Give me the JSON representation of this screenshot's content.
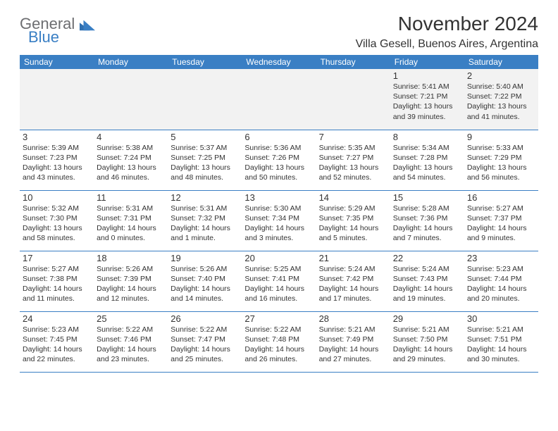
{
  "brand": {
    "text_top": "General",
    "text_bottom": "Blue",
    "colors": {
      "gray": "#6d6e71",
      "blue": "#3a7fc4"
    }
  },
  "header": {
    "title": "November 2024",
    "location": "Villa Gesell, Buenos Aires, Argentina"
  },
  "calendar": {
    "header_bg": "#3a7fc4",
    "header_text_color": "#ffffff",
    "row_divider_color": "#3a7fc4",
    "first_row_bg": "#f2f2f2",
    "day_headers": [
      "Sunday",
      "Monday",
      "Tuesday",
      "Wednesday",
      "Thursday",
      "Friday",
      "Saturday"
    ],
    "weeks": [
      [
        {
          "num": "",
          "sunrise": "",
          "sunset": "",
          "daylight": ""
        },
        {
          "num": "",
          "sunrise": "",
          "sunset": "",
          "daylight": ""
        },
        {
          "num": "",
          "sunrise": "",
          "sunset": "",
          "daylight": ""
        },
        {
          "num": "",
          "sunrise": "",
          "sunset": "",
          "daylight": ""
        },
        {
          "num": "",
          "sunrise": "",
          "sunset": "",
          "daylight": ""
        },
        {
          "num": "1",
          "sunrise": "Sunrise: 5:41 AM",
          "sunset": "Sunset: 7:21 PM",
          "daylight": "Daylight: 13 hours and 39 minutes."
        },
        {
          "num": "2",
          "sunrise": "Sunrise: 5:40 AM",
          "sunset": "Sunset: 7:22 PM",
          "daylight": "Daylight: 13 hours and 41 minutes."
        }
      ],
      [
        {
          "num": "3",
          "sunrise": "Sunrise: 5:39 AM",
          "sunset": "Sunset: 7:23 PM",
          "daylight": "Daylight: 13 hours and 43 minutes."
        },
        {
          "num": "4",
          "sunrise": "Sunrise: 5:38 AM",
          "sunset": "Sunset: 7:24 PM",
          "daylight": "Daylight: 13 hours and 46 minutes."
        },
        {
          "num": "5",
          "sunrise": "Sunrise: 5:37 AM",
          "sunset": "Sunset: 7:25 PM",
          "daylight": "Daylight: 13 hours and 48 minutes."
        },
        {
          "num": "6",
          "sunrise": "Sunrise: 5:36 AM",
          "sunset": "Sunset: 7:26 PM",
          "daylight": "Daylight: 13 hours and 50 minutes."
        },
        {
          "num": "7",
          "sunrise": "Sunrise: 5:35 AM",
          "sunset": "Sunset: 7:27 PM",
          "daylight": "Daylight: 13 hours and 52 minutes."
        },
        {
          "num": "8",
          "sunrise": "Sunrise: 5:34 AM",
          "sunset": "Sunset: 7:28 PM",
          "daylight": "Daylight: 13 hours and 54 minutes."
        },
        {
          "num": "9",
          "sunrise": "Sunrise: 5:33 AM",
          "sunset": "Sunset: 7:29 PM",
          "daylight": "Daylight: 13 hours and 56 minutes."
        }
      ],
      [
        {
          "num": "10",
          "sunrise": "Sunrise: 5:32 AM",
          "sunset": "Sunset: 7:30 PM",
          "daylight": "Daylight: 13 hours and 58 minutes."
        },
        {
          "num": "11",
          "sunrise": "Sunrise: 5:31 AM",
          "sunset": "Sunset: 7:31 PM",
          "daylight": "Daylight: 14 hours and 0 minutes."
        },
        {
          "num": "12",
          "sunrise": "Sunrise: 5:31 AM",
          "sunset": "Sunset: 7:32 PM",
          "daylight": "Daylight: 14 hours and 1 minute."
        },
        {
          "num": "13",
          "sunrise": "Sunrise: 5:30 AM",
          "sunset": "Sunset: 7:34 PM",
          "daylight": "Daylight: 14 hours and 3 minutes."
        },
        {
          "num": "14",
          "sunrise": "Sunrise: 5:29 AM",
          "sunset": "Sunset: 7:35 PM",
          "daylight": "Daylight: 14 hours and 5 minutes."
        },
        {
          "num": "15",
          "sunrise": "Sunrise: 5:28 AM",
          "sunset": "Sunset: 7:36 PM",
          "daylight": "Daylight: 14 hours and 7 minutes."
        },
        {
          "num": "16",
          "sunrise": "Sunrise: 5:27 AM",
          "sunset": "Sunset: 7:37 PM",
          "daylight": "Daylight: 14 hours and 9 minutes."
        }
      ],
      [
        {
          "num": "17",
          "sunrise": "Sunrise: 5:27 AM",
          "sunset": "Sunset: 7:38 PM",
          "daylight": "Daylight: 14 hours and 11 minutes."
        },
        {
          "num": "18",
          "sunrise": "Sunrise: 5:26 AM",
          "sunset": "Sunset: 7:39 PM",
          "daylight": "Daylight: 14 hours and 12 minutes."
        },
        {
          "num": "19",
          "sunrise": "Sunrise: 5:26 AM",
          "sunset": "Sunset: 7:40 PM",
          "daylight": "Daylight: 14 hours and 14 minutes."
        },
        {
          "num": "20",
          "sunrise": "Sunrise: 5:25 AM",
          "sunset": "Sunset: 7:41 PM",
          "daylight": "Daylight: 14 hours and 16 minutes."
        },
        {
          "num": "21",
          "sunrise": "Sunrise: 5:24 AM",
          "sunset": "Sunset: 7:42 PM",
          "daylight": "Daylight: 14 hours and 17 minutes."
        },
        {
          "num": "22",
          "sunrise": "Sunrise: 5:24 AM",
          "sunset": "Sunset: 7:43 PM",
          "daylight": "Daylight: 14 hours and 19 minutes."
        },
        {
          "num": "23",
          "sunrise": "Sunrise: 5:23 AM",
          "sunset": "Sunset: 7:44 PM",
          "daylight": "Daylight: 14 hours and 20 minutes."
        }
      ],
      [
        {
          "num": "24",
          "sunrise": "Sunrise: 5:23 AM",
          "sunset": "Sunset: 7:45 PM",
          "daylight": "Daylight: 14 hours and 22 minutes."
        },
        {
          "num": "25",
          "sunrise": "Sunrise: 5:22 AM",
          "sunset": "Sunset: 7:46 PM",
          "daylight": "Daylight: 14 hours and 23 minutes."
        },
        {
          "num": "26",
          "sunrise": "Sunrise: 5:22 AM",
          "sunset": "Sunset: 7:47 PM",
          "daylight": "Daylight: 14 hours and 25 minutes."
        },
        {
          "num": "27",
          "sunrise": "Sunrise: 5:22 AM",
          "sunset": "Sunset: 7:48 PM",
          "daylight": "Daylight: 14 hours and 26 minutes."
        },
        {
          "num": "28",
          "sunrise": "Sunrise: 5:21 AM",
          "sunset": "Sunset: 7:49 PM",
          "daylight": "Daylight: 14 hours and 27 minutes."
        },
        {
          "num": "29",
          "sunrise": "Sunrise: 5:21 AM",
          "sunset": "Sunset: 7:50 PM",
          "daylight": "Daylight: 14 hours and 29 minutes."
        },
        {
          "num": "30",
          "sunrise": "Sunrise: 5:21 AM",
          "sunset": "Sunset: 7:51 PM",
          "daylight": "Daylight: 14 hours and 30 minutes."
        }
      ]
    ]
  }
}
